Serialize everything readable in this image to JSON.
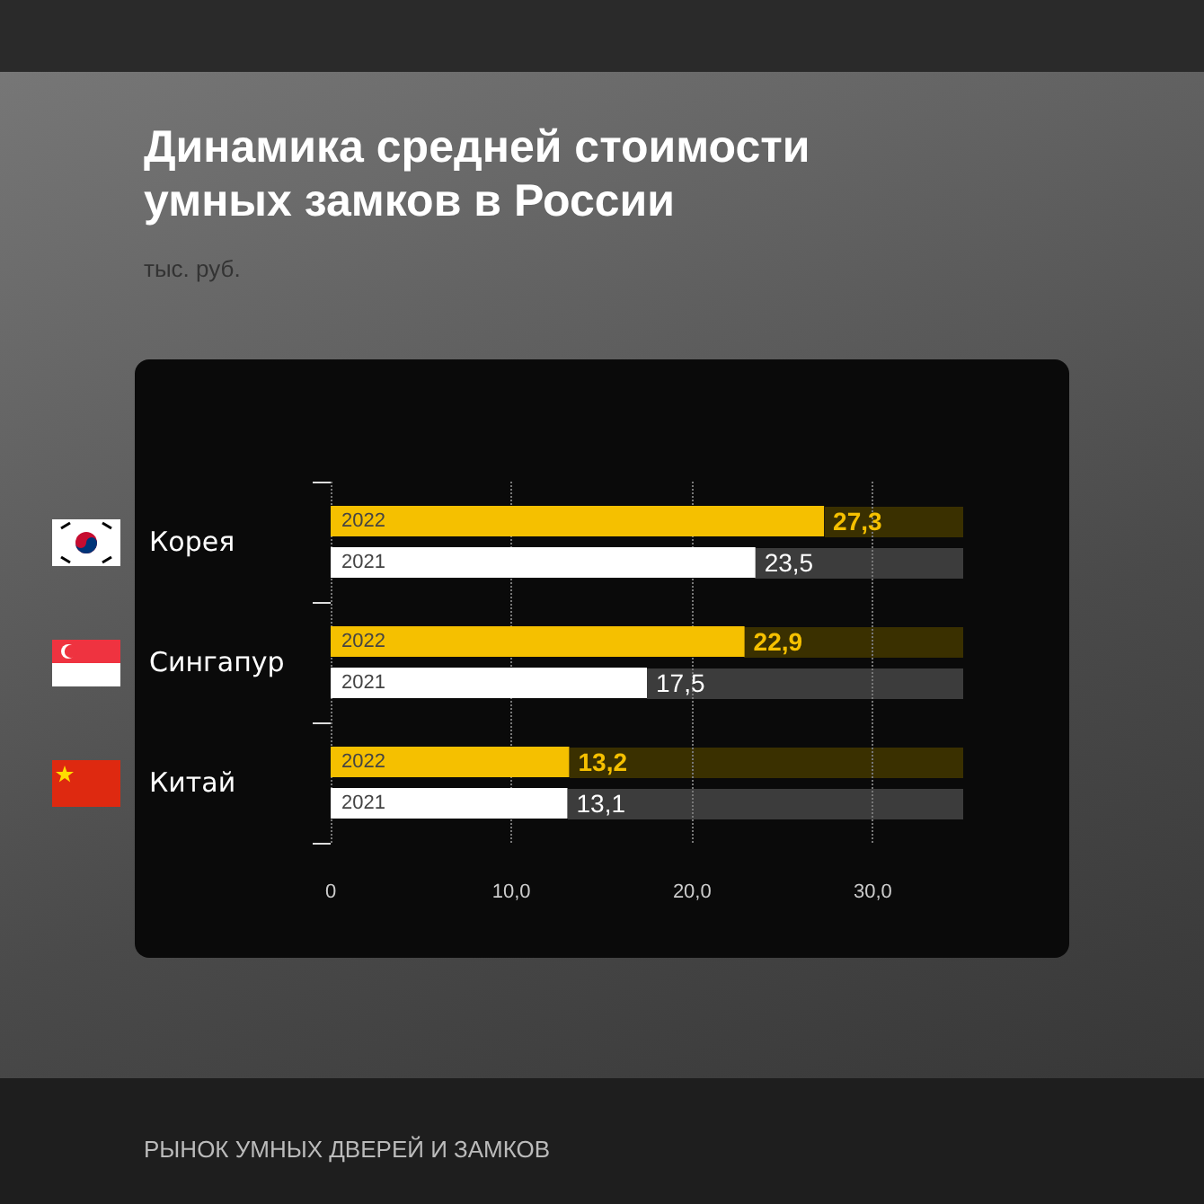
{
  "chart_data": {
    "type": "bar",
    "orientation": "horizontal",
    "title": "Динамика средней стоимости умных замков в России",
    "subtitle": "тыс. руб.",
    "annotations": [
      "РЫНОК УМНЫХ ДВЕРЕЙ И ЗАМКОВ"
    ],
    "categories": [
      "Корея",
      "Сингапур",
      "Китай"
    ],
    "series": [
      {
        "name": "2022",
        "color": "#f5c000",
        "values": [
          27.3,
          22.9,
          13.2
        ],
        "value_labels": [
          "27,3",
          "22,9",
          "13,2"
        ]
      },
      {
        "name": "2021",
        "color": "#ffffff",
        "values": [
          23.5,
          17.5,
          13.1
        ],
        "value_labels": [
          "23,5",
          "17,5",
          "13,1"
        ]
      }
    ],
    "xlim": [
      0,
      35
    ],
    "xticks": [
      0,
      {
        "value": 10,
        "label": "10,0"
      },
      {
        "value": 20,
        "label": "20,0"
      },
      {
        "value": 30,
        "label": "30,0"
      }
    ],
    "grid": "x"
  }
}
